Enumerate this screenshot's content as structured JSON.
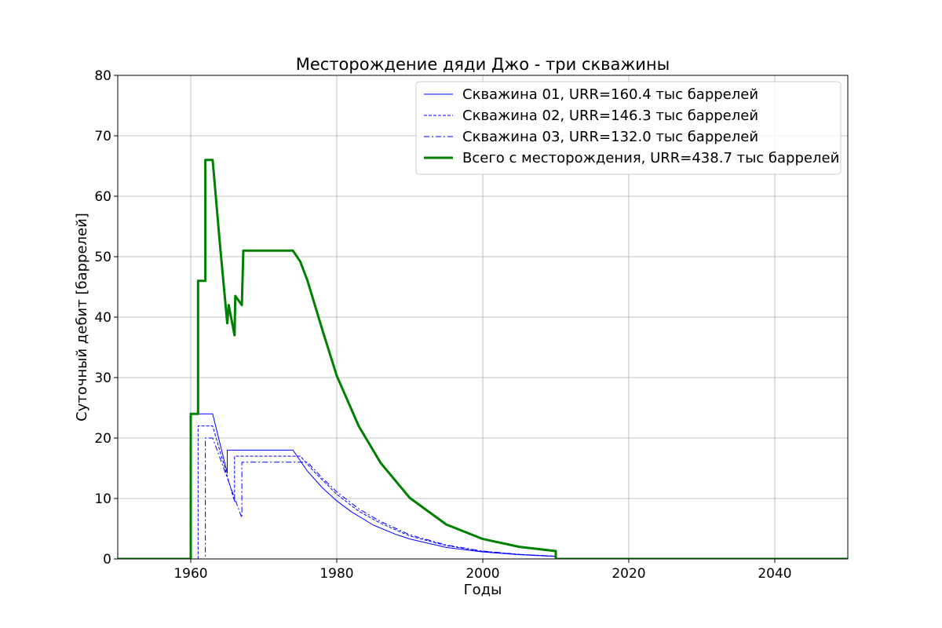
{
  "chart_data": {
    "type": "line",
    "title": "Месторождение дяди Джо - три скважины",
    "xlabel": "Годы",
    "ylabel": "Суточный дебит [баррелей]",
    "xlim": [
      1950,
      2050
    ],
    "ylim": [
      0,
      80
    ],
    "xticks": [
      1960,
      1980,
      2000,
      2020,
      2040
    ],
    "yticks": [
      0,
      10,
      20,
      30,
      40,
      50,
      60,
      70,
      80
    ],
    "grid": true,
    "legend_position": "top-right",
    "series": [
      {
        "name": "Скважина 01, URR=160.4 тыс баррелей",
        "color": "#0000ff",
        "style": "solid",
        "width": 1,
        "x": [
          1950,
          1960,
          1960,
          1963,
          1965,
          1965,
          1974,
          1976,
          1978,
          1980,
          1982,
          1985,
          1988,
          1990,
          1995,
          2000,
          2005,
          2010,
          2010,
          2050
        ],
        "y": [
          0,
          0,
          24,
          24,
          14.2,
          18,
          18,
          14.5,
          11.8,
          9.6,
          7.8,
          5.6,
          4.1,
          3.3,
          1.9,
          1.15,
          0.7,
          0.4,
          0,
          0
        ]
      },
      {
        "name": "Скважина 02, URR=146.3 тыс баррелей",
        "color": "#0000ff",
        "style": "dashed",
        "width": 1,
        "x": [
          1950,
          1961,
          1961,
          1963,
          1966,
          1966,
          1975,
          1977,
          1980,
          1983,
          1986,
          1990,
          1995,
          2000,
          2005,
          2010,
          2010,
          2050
        ],
        "y": [
          0,
          0,
          22,
          22,
          9.5,
          17,
          17,
          14.3,
          10.7,
          7.9,
          5.9,
          3.8,
          2.2,
          1.25,
          0.75,
          0.45,
          0,
          0
        ]
      },
      {
        "name": "Скважина 03, URR=132.0 тыс баррелей",
        "color": "#0000ff",
        "style": "dashdot",
        "width": 1,
        "x": [
          1950,
          1962,
          1962,
          1963,
          1967,
          1967,
          1976,
          1978,
          1980,
          1983,
          1986,
          1990,
          1995,
          2000,
          2005,
          2010,
          2010,
          2050
        ],
        "y": [
          0,
          0,
          20,
          20,
          6.8,
          16,
          16,
          13.4,
          11.1,
          8.3,
          6.2,
          4.0,
          2.3,
          1.3,
          0.75,
          0.45,
          0,
          0
        ]
      },
      {
        "name": "Всего с месторождения, URR=438.7 тыс баррелей",
        "color": "#008000",
        "style": "solid",
        "width": 3,
        "x": [
          1950,
          1960,
          1960,
          1961,
          1961,
          1962,
          1962,
          1963,
          1964,
          1965,
          1965.2,
          1966,
          1966.1,
          1967,
          1967.2,
          1974,
          1975,
          1976,
          1978,
          1980,
          1983,
          1986,
          1990,
          1995,
          2000,
          2005,
          2010,
          2010,
          2050
        ],
        "y": [
          0,
          0,
          24,
          24,
          46,
          46,
          66,
          66,
          52,
          39,
          42,
          37,
          43.5,
          42,
          51,
          51,
          49.2,
          46,
          38,
          30.3,
          22,
          15.9,
          10.1,
          5.7,
          3.3,
          2.0,
          1.3,
          0,
          0
        ]
      }
    ]
  }
}
